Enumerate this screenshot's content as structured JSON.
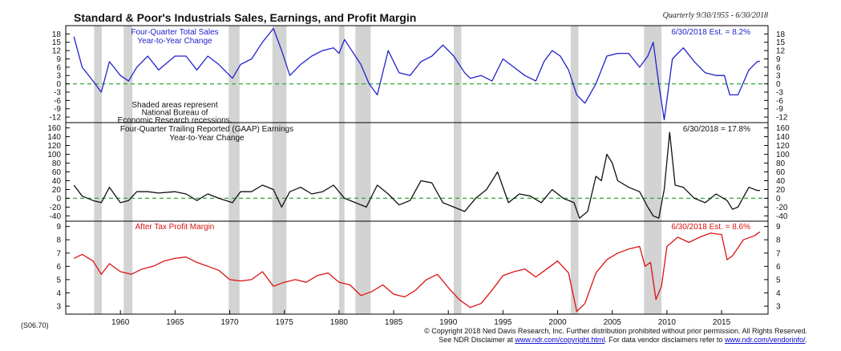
{
  "header": {
    "title": "Standard & Poor's Industrials Sales, Earnings, and Profit Margin",
    "period": "Quarterly 9/30/1955 - 6/30/2018"
  },
  "footer": {
    "code": "(S06.70)",
    "copyright": "© Copyright 2018 Ned Davis Research, Inc.  Further distribution prohibited without prior permission.  All Rights Reserved.",
    "line2_pre": "See NDR Disclaimer at ",
    "link1": "www.ndr.com/copyright.html",
    "line2_mid": ".  For data vendor disclaimers refer to ",
    "link2": "www.ndr.com/vendorinfo/",
    "line2_post": "."
  },
  "colors": {
    "sales": "#2222cc",
    "earnings": "#111111",
    "margin": "#dd1111",
    "recession": "#d3d3d3",
    "zero_line": "#33aa33"
  },
  "chart_data": [
    {
      "type": "line",
      "title": "Four-Quarter Total Sales",
      "subtitle": "Year-to-Year Change",
      "annotation": "6/30/2018 Est. = 8.2%",
      "note": "Shaded areas represent National Bureau of Economic Research recessions.",
      "note_lines": [
        "Shaded areas represent",
        "National Bureau of",
        "Economic Research recessions."
      ],
      "ylim": [
        -14,
        21
      ],
      "yticks": [
        -12,
        -9,
        -6,
        -3,
        0,
        3,
        6,
        9,
        12,
        15,
        18
      ],
      "reference_line": 0,
      "x": [
        1955.75,
        1956.5,
        1957.5,
        1958.25,
        1959.0,
        1960.0,
        1960.75,
        1961.5,
        1962.5,
        1963.5,
        1965.0,
        1966.0,
        1967.0,
        1968.0,
        1969.0,
        1970.25,
        1971.0,
        1972.0,
        1973.0,
        1974.0,
        1974.75,
        1975.5,
        1976.5,
        1977.5,
        1978.5,
        1979.5,
        1980.0,
        1980.5,
        1981.0,
        1982.0,
        1982.75,
        1983.5,
        1984.5,
        1985.5,
        1986.5,
        1987.5,
        1988.5,
        1989.5,
        1990.5,
        1991.5,
        1992.0,
        1993.0,
        1994.0,
        1995.0,
        1996.0,
        1997.0,
        1998.0,
        1998.75,
        1999.5,
        2000.25,
        2001.0,
        2001.75,
        2002.5,
        2003.5,
        2004.5,
        2005.5,
        2006.5,
        2007.5,
        2008.25,
        2008.75,
        2009.25,
        2009.75,
        2010.5,
        2011.5,
        2012.5,
        2013.5,
        2014.5,
        2015.25,
        2015.75,
        2016.5,
        2017.5,
        2018.25,
        2018.5
      ],
      "y": [
        17,
        6,
        1,
        -3,
        8,
        3,
        1,
        6,
        10,
        5,
        10,
        10,
        5,
        10,
        7,
        2,
        7,
        9,
        15,
        20,
        12,
        3,
        7,
        10,
        12,
        13,
        11,
        16,
        13,
        7,
        0,
        -4,
        12,
        4,
        3,
        8,
        10,
        14,
        10,
        4,
        2,
        3,
        1,
        9,
        6,
        3,
        1,
        8,
        12,
        10,
        5,
        -4,
        -7,
        0,
        10,
        11,
        11,
        6,
        10,
        15,
        0,
        -13,
        9,
        13,
        8,
        4,
        3,
        3,
        -4,
        -4,
        5,
        8,
        8.2
      ]
    },
    {
      "type": "line",
      "title": "Four-Quarter Trailing Reported (GAAP) Earnings",
      "subtitle": "Year-to-Year Change",
      "annotation": "6/30/2018 = 17.8%",
      "ylim": [
        -52,
        172
      ],
      "yticks": [
        -40,
        -20,
        0,
        20,
        40,
        60,
        80,
        100,
        120,
        140,
        160
      ],
      "reference_line": 0,
      "x": [
        1955.75,
        1956.5,
        1957.5,
        1958.25,
        1959.0,
        1960.0,
        1960.75,
        1961.5,
        1962.5,
        1963.5,
        1965.0,
        1966.0,
        1967.0,
        1968.0,
        1969.0,
        1970.25,
        1971.0,
        1972.0,
        1973.0,
        1974.0,
        1974.75,
        1975.5,
        1976.5,
        1977.5,
        1978.5,
        1979.5,
        1980.5,
        1981.5,
        1982.5,
        1983.5,
        1984.5,
        1985.5,
        1986.5,
        1987.5,
        1988.5,
        1989.5,
        1990.5,
        1991.5,
        1992.5,
        1993.5,
        1994.5,
        1995.5,
        1996.5,
        1997.5,
        1998.5,
        1999.5,
        2000.5,
        2001.5,
        2002.0,
        2002.75,
        2003.5,
        2004.0,
        2004.5,
        2005.0,
        2005.5,
        2006.5,
        2007.5,
        2008.25,
        2008.75,
        2009.25,
        2009.75,
        2010.25,
        2010.75,
        2011.5,
        2012.5,
        2013.5,
        2014.5,
        2015.5,
        2016.0,
        2016.5,
        2017.5,
        2018.25,
        2018.5
      ],
      "y": [
        30,
        5,
        -5,
        -10,
        25,
        -10,
        -5,
        15,
        15,
        12,
        15,
        10,
        -5,
        10,
        0,
        -10,
        15,
        15,
        30,
        20,
        -20,
        15,
        25,
        10,
        15,
        30,
        0,
        -10,
        -20,
        30,
        10,
        -15,
        -5,
        40,
        35,
        -10,
        -20,
        -30,
        0,
        20,
        60,
        -10,
        10,
        5,
        -10,
        20,
        0,
        -10,
        -45,
        -30,
        50,
        40,
        100,
        80,
        40,
        25,
        15,
        -20,
        -40,
        -45,
        20,
        150,
        30,
        25,
        0,
        -10,
        10,
        -5,
        -25,
        -20,
        25,
        18,
        17.8
      ]
    },
    {
      "type": "line",
      "title": "After Tax Profit Margin",
      "annotation": "6/30/2018 Est. = 8.6%",
      "ylim": [
        2.4,
        9.4
      ],
      "yticks": [
        3,
        4,
        5,
        6,
        7,
        8,
        9
      ],
      "x": [
        1955.75,
        1956.5,
        1957.5,
        1958.25,
        1959.0,
        1960.0,
        1961.0,
        1962.0,
        1963.0,
        1964.0,
        1965.0,
        1966.0,
        1967.0,
        1968.0,
        1969.0,
        1970.0,
        1971.0,
        1972.0,
        1973.0,
        1974.0,
        1975.0,
        1976.0,
        1977.0,
        1978.0,
        1979.0,
        1980.0,
        1981.0,
        1982.0,
        1983.0,
        1984.0,
        1985.0,
        1986.0,
        1987.0,
        1988.0,
        1989.0,
        1990.0,
        1991.0,
        1992.0,
        1993.0,
        1994.0,
        1995.0,
        1996.0,
        1997.0,
        1998.0,
        1999.0,
        2000.0,
        2001.0,
        2001.75,
        2002.5,
        2003.5,
        2004.5,
        2005.5,
        2006.5,
        2007.5,
        2008.0,
        2008.5,
        2009.0,
        2009.5,
        2010.0,
        2011.0,
        2012.0,
        2013.0,
        2014.0,
        2015.0,
        2015.5,
        2016.0,
        2017.0,
        2018.0,
        2018.5
      ],
      "y": [
        6.6,
        6.9,
        6.4,
        5.4,
        6.2,
        5.6,
        5.4,
        5.8,
        6.0,
        6.4,
        6.6,
        6.7,
        6.3,
        6.0,
        5.7,
        5.0,
        4.9,
        5.0,
        5.6,
        4.5,
        4.8,
        5.0,
        4.8,
        5.3,
        5.5,
        4.8,
        4.6,
        3.8,
        4.1,
        4.6,
        3.9,
        3.7,
        4.2,
        5.0,
        5.4,
        4.4,
        3.5,
        2.9,
        3.2,
        4.2,
        5.3,
        5.6,
        5.8,
        5.2,
        5.8,
        6.4,
        5.5,
        2.6,
        3.2,
        5.5,
        6.5,
        7.0,
        7.3,
        7.5,
        6.0,
        6.3,
        3.5,
        4.5,
        7.5,
        8.2,
        7.8,
        8.2,
        8.5,
        8.4,
        6.5,
        6.8,
        8.0,
        8.3,
        8.6
      ]
    }
  ],
  "recessions": [
    [
      1957.6,
      1958.3
    ],
    [
      1960.3,
      1961.1
    ],
    [
      1969.9,
      1970.9
    ],
    [
      1973.9,
      1975.2
    ],
    [
      1980.0,
      1980.5
    ],
    [
      1981.5,
      1982.9
    ],
    [
      1990.5,
      1991.2
    ],
    [
      2001.2,
      2001.9
    ],
    [
      2007.9,
      2009.5
    ]
  ],
  "x_axis": {
    "range": [
      1955.0,
      2019.25
    ],
    "ticks": [
      1960,
      1965,
      1970,
      1975,
      1980,
      1985,
      1990,
      1995,
      2000,
      2005,
      2010,
      2015
    ]
  }
}
